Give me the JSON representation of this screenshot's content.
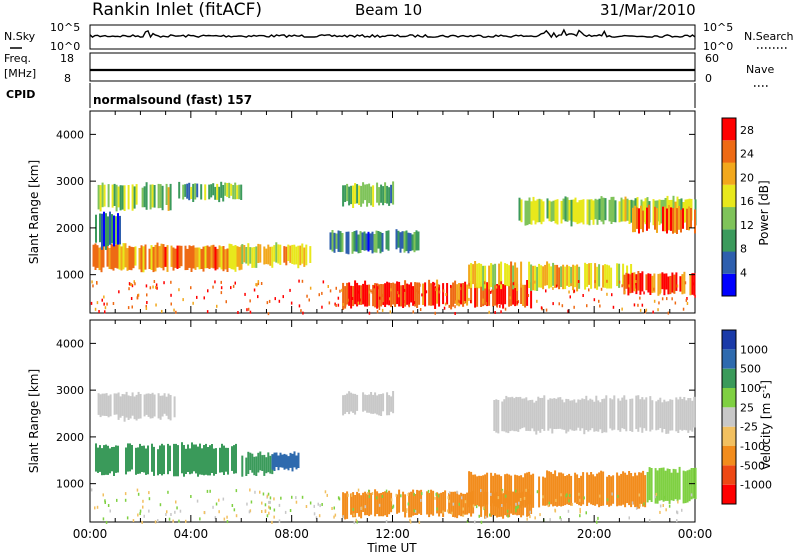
{
  "header": {
    "title": "Rankin Inlet (fitACF)",
    "beam": "Beam 10",
    "date": "31/Mar/2010"
  },
  "noise_panel": {
    "left_label": "N.Sky",
    "right_label": "N.Search",
    "ticks_left": [
      "10^5",
      "10^0"
    ],
    "ticks_right": [
      "10^5",
      "10^0"
    ]
  },
  "freq_panel": {
    "left_label_1": "Freq.",
    "left_label_2": "[MHz]",
    "cpid_label": "CPID",
    "ticks_left": [
      "18",
      "8"
    ],
    "right_label": "Nave",
    "ticks_right": [
      "60",
      "0"
    ]
  },
  "cpid_panel": {
    "text": "normalsound (fast) 157"
  },
  "x_axis": {
    "label": "Time UT",
    "ticks": [
      "00:00",
      "04:00",
      "08:00",
      "12:00",
      "16:00",
      "20:00",
      "00:00"
    ]
  },
  "colors": {
    "power_scale": [
      "#0000ff",
      "#2e5fae",
      "#3b9a5c",
      "#7fc35a",
      "#e8e81c",
      "#f2a81c",
      "#ee6a14",
      "#ff0000"
    ],
    "velocity_scale": [
      "#ff0000",
      "#ee4814",
      "#f28c1c",
      "#f2c060",
      "#c8c8c8",
      "#7fd042",
      "#3a9a5a",
      "#2e6aae",
      "#1a3aa8"
    ]
  },
  "chart_data": [
    {
      "type": "heatmap",
      "title": "",
      "xlabel": "Time UT",
      "ylabel": "Slant Range [km]",
      "xlim": [
        0,
        24
      ],
      "ylim": [
        180,
        4500
      ],
      "y_ticks": [
        "1000",
        "2000",
        "3000",
        "4000"
      ],
      "colorbar": {
        "label": "Power [dB]",
        "ticks": [
          "4",
          "8",
          "12",
          "16",
          "20",
          "24",
          "28"
        ],
        "range": [
          0,
          30
        ]
      },
      "regions": [
        {
          "t0": 0.3,
          "t1": 3.2,
          "r0": 2400,
          "r1": 3000,
          "value": 14
        },
        {
          "t0": 0.1,
          "t1": 6.0,
          "r0": 1100,
          "r1": 1700,
          "value": 22
        },
        {
          "t0": 0.2,
          "t1": 1.2,
          "r0": 1600,
          "r1": 2400,
          "value": 8
        },
        {
          "t0": 3.5,
          "t1": 6.0,
          "r0": 2600,
          "r1": 3000,
          "value": 12
        },
        {
          "t0": 6.0,
          "t1": 8.8,
          "r0": 1200,
          "r1": 1700,
          "value": 18
        },
        {
          "t0": 10.0,
          "t1": 12.0,
          "r0": 2500,
          "r1": 3000,
          "value": 12
        },
        {
          "t0": 9.5,
          "t1": 13.0,
          "r0": 1500,
          "r1": 2000,
          "value": 8
        },
        {
          "t0": 10.0,
          "t1": 17.5,
          "r0": 300,
          "r1": 900,
          "value": 26
        },
        {
          "t0": 15.0,
          "t1": 21.5,
          "r0": 700,
          "r1": 1300,
          "value": 18
        },
        {
          "t0": 17.0,
          "t1": 24.0,
          "r0": 2100,
          "r1": 2700,
          "value": 14
        },
        {
          "t0": 21.5,
          "t1": 24.0,
          "r0": 1900,
          "r1": 2500,
          "value": 24
        },
        {
          "t0": 21.0,
          "t1": 24.0,
          "r0": 600,
          "r1": 1100,
          "value": 26
        }
      ]
    },
    {
      "type": "heatmap",
      "title": "",
      "xlabel": "Time UT",
      "ylabel": "Slant Range [km]",
      "xlim": [
        0,
        24
      ],
      "ylim": [
        180,
        4500
      ],
      "y_ticks": [
        "1000",
        "2000",
        "3000",
        "4000"
      ],
      "colorbar": {
        "label": "Velocity [m s-1]",
        "ticks": [
          "1000",
          "500",
          "100",
          "25",
          "-25",
          "-100",
          "-500",
          "-1000"
        ]
      },
      "regions": [
        {
          "t0": 0.3,
          "t1": 3.5,
          "r0": 2400,
          "r1": 3000,
          "value": 0
        },
        {
          "t0": 0.2,
          "t1": 5.8,
          "r0": 1200,
          "r1": 1900,
          "value": 150
        },
        {
          "t0": 6.0,
          "t1": 7.2,
          "r0": 1200,
          "r1": 1700,
          "value": 150
        },
        {
          "t0": 7.2,
          "t1": 8.3,
          "r0": 1300,
          "r1": 1700,
          "value": 800
        },
        {
          "t0": 10.0,
          "t1": 12.0,
          "r0": 2500,
          "r1": 3000,
          "value": 0
        },
        {
          "t0": 10.0,
          "t1": 17.5,
          "r0": 300,
          "r1": 900,
          "value": -250
        },
        {
          "t0": 15.0,
          "t1": 22.0,
          "r0": 500,
          "r1": 1300,
          "value": -250
        },
        {
          "t0": 16.0,
          "t1": 24.0,
          "r0": 2100,
          "r1": 2900,
          "value": 0
        },
        {
          "t0": 22.0,
          "t1": 24.0,
          "r0": 600,
          "r1": 1400,
          "value": 60
        }
      ]
    }
  ]
}
